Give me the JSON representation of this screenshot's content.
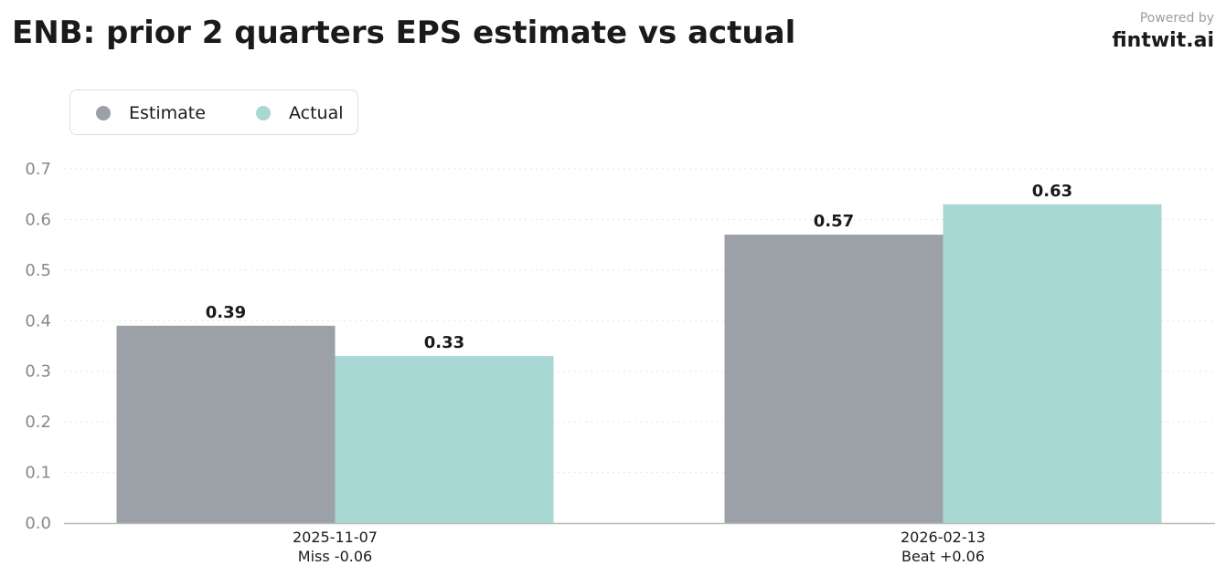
{
  "header": {
    "title": "ENB: prior 2 quarters EPS estimate vs actual",
    "powered_by": "Powered by",
    "brand": "fintwit.ai"
  },
  "chart_data": {
    "type": "bar",
    "title": "ENB: prior 2 quarters EPS estimate vs actual",
    "categories": [
      "2025-11-07",
      "2026-02-13"
    ],
    "category_notes": [
      "Miss -0.06",
      "Beat +0.06"
    ],
    "series": [
      {
        "name": "Estimate",
        "values": [
          0.39,
          0.57
        ],
        "labels": [
          "0.39",
          "0.57"
        ],
        "color": "#9ca0a7"
      },
      {
        "name": "Actual",
        "values": [
          0.33,
          0.63
        ],
        "labels": [
          "0.33",
          "0.63"
        ],
        "color": "#a8d8d4"
      }
    ],
    "ylim": [
      0,
      0.7
    ],
    "yticks": [
      0.0,
      0.1,
      0.2,
      0.3,
      0.4,
      0.5,
      0.6,
      0.7
    ],
    "ytick_labels": [
      "0.0",
      "0.1",
      "0.2",
      "0.3",
      "0.4",
      "0.5",
      "0.6",
      "0.7"
    ],
    "grid": true,
    "legend_position": "top-left"
  }
}
